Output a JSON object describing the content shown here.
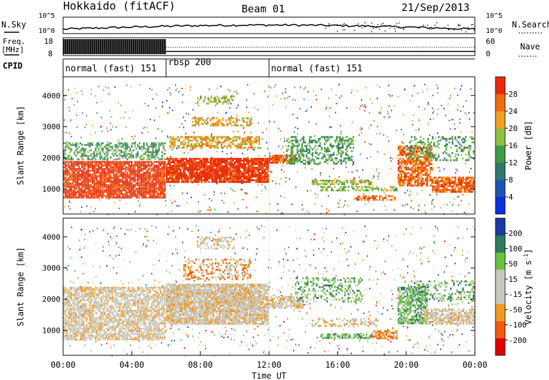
{
  "header": {
    "station": "Hokkaido (fitACF)",
    "beam": "Beam 01",
    "date": "21/Sep/2013"
  },
  "top_panels": {
    "nsky_label": "N.Sky",
    "nsearch_label": "N.Search",
    "freq_label": "Freq.",
    "freq_unit": "[MHz]",
    "nave_label": "Nave",
    "cpid_label": "CPID",
    "noise_ticks": [
      "10^5",
      "10^0"
    ],
    "freq_ticks": [
      "18",
      "8"
    ],
    "nave_ticks": [
      "60",
      "0"
    ]
  },
  "cpid_segments": [
    {
      "label": "normal (fast) 151",
      "start_h": 0,
      "end_h": 6
    },
    {
      "label": "rbsp 200",
      "start_h": 6,
      "end_h": 12
    },
    {
      "label": "normal (fast) 151",
      "start_h": 12,
      "end_h": 24
    }
  ],
  "colors": {
    "power": [
      "#0a2ee0",
      "#1e55b4",
      "#2f7a70",
      "#3f9a4a",
      "#8cc040",
      "#f0a020",
      "#f06a10",
      "#e82a0a"
    ],
    "velocity": [
      "#e00000",
      "#f05a10",
      "#f09a20",
      "#c8c8c0",
      "#c8c8c0",
      "#6cc040",
      "#2f7a60",
      "#1a3aa0"
    ]
  },
  "chart_data": [
    {
      "type": "heatmap",
      "quantity": "power",
      "ylabel": "Slant Range [km]",
      "ylim": [
        200,
        4600
      ],
      "yticks": [
        "4000",
        "3000",
        "2000",
        "1000"
      ],
      "xlim_h": [
        0,
        24
      ],
      "colorbar_label": "Power [dB]",
      "colorbar_ticks": [
        "28",
        "24",
        "20",
        "16",
        "12",
        "8",
        "4"
      ],
      "bands": [
        {
          "start_h": 0.0,
          "end_h": 6.0,
          "range_lo": 700,
          "range_hi": 1900,
          "level": 7,
          "density": 0.9
        },
        {
          "start_h": 0.0,
          "end_h": 6.0,
          "range_lo": 1900,
          "range_hi": 2500,
          "level": 3,
          "density": 0.5
        },
        {
          "start_h": 6.0,
          "end_h": 12.0,
          "range_lo": 1200,
          "range_hi": 2000,
          "level": 7,
          "density": 0.9
        },
        {
          "start_h": 6.2,
          "end_h": 11.5,
          "range_lo": 2300,
          "range_hi": 2700,
          "level": 5,
          "density": 0.6
        },
        {
          "start_h": 7.5,
          "end_h": 11.0,
          "range_lo": 3000,
          "range_hi": 3300,
          "level": 5,
          "density": 0.5
        },
        {
          "start_h": 7.8,
          "end_h": 10.0,
          "range_lo": 3700,
          "range_hi": 4000,
          "level": 4,
          "density": 0.4
        },
        {
          "start_h": 12.0,
          "end_h": 13.6,
          "range_lo": 1800,
          "range_hi": 2100,
          "level": 6,
          "density": 0.8
        },
        {
          "start_h": 13.0,
          "end_h": 17.0,
          "range_lo": 1800,
          "range_hi": 2700,
          "level": 3,
          "density": 0.4
        },
        {
          "start_h": 14.5,
          "end_h": 18.0,
          "range_lo": 1100,
          "range_hi": 1300,
          "level": 4,
          "density": 0.6
        },
        {
          "start_h": 15.0,
          "end_h": 19.5,
          "range_lo": 900,
          "range_hi": 1100,
          "level": 4,
          "density": 0.5
        },
        {
          "start_h": 17.0,
          "end_h": 19.5,
          "range_lo": 600,
          "range_hi": 800,
          "level": 6,
          "density": 0.6
        },
        {
          "start_h": 19.5,
          "end_h": 21.5,
          "range_lo": 1100,
          "range_hi": 2400,
          "level": 6,
          "density": 0.7
        },
        {
          "start_h": 21.5,
          "end_h": 24.0,
          "range_lo": 900,
          "range_hi": 1400,
          "level": 6,
          "density": 0.8
        },
        {
          "start_h": 20.0,
          "end_h": 24.0,
          "range_lo": 1900,
          "range_hi": 2700,
          "level": 3,
          "density": 0.3
        }
      ]
    },
    {
      "type": "heatmap",
      "quantity": "velocity",
      "ylabel": "Slant Range [km]",
      "ylim": [
        200,
        4600
      ],
      "yticks": [
        "4000",
        "3000",
        "2000",
        "1000"
      ],
      "xlim_h": [
        0,
        24
      ],
      "xticks": [
        "00:00",
        "04:00",
        "08:00",
        "12:00",
        "16:00",
        "20:00",
        "00:00"
      ],
      "xlabel": "Time UT",
      "colorbar_label": "Velocity [m s",
      "colorbar_label_sup": "-1",
      "colorbar_label_end": "]",
      "colorbar_ticks": [
        "200",
        "100",
        "50",
        "15",
        "-15",
        "-50",
        "-100",
        "-200"
      ],
      "bands": [
        {
          "start_h": 0.0,
          "end_h": 6.0,
          "range_lo": 700,
          "range_hi": 2400,
          "level": 3,
          "density": 0.75
        },
        {
          "start_h": 6.0,
          "end_h": 12.0,
          "range_lo": 1200,
          "range_hi": 2500,
          "level": 3,
          "density": 0.9
        },
        {
          "start_h": 7.0,
          "end_h": 11.0,
          "range_lo": 2600,
          "range_hi": 3300,
          "level": 2,
          "density": 0.35
        },
        {
          "start_h": 7.8,
          "end_h": 10.0,
          "range_lo": 3600,
          "range_hi": 4000,
          "level": 3,
          "density": 0.4
        },
        {
          "start_h": 12.0,
          "end_h": 14.0,
          "range_lo": 1700,
          "range_hi": 2100,
          "level": 3,
          "density": 0.7
        },
        {
          "start_h": 13.5,
          "end_h": 17.5,
          "range_lo": 1900,
          "range_hi": 2700,
          "level": 5,
          "density": 0.3
        },
        {
          "start_h": 14.5,
          "end_h": 18.5,
          "range_lo": 1100,
          "range_hi": 1400,
          "level": 3,
          "density": 0.4
        },
        {
          "start_h": 15.0,
          "end_h": 18.0,
          "range_lo": 700,
          "range_hi": 900,
          "level": 5,
          "density": 0.7
        },
        {
          "start_h": 18.0,
          "end_h": 19.5,
          "range_lo": 700,
          "range_hi": 1000,
          "level": 2,
          "density": 0.8
        },
        {
          "start_h": 19.5,
          "end_h": 21.3,
          "range_lo": 1200,
          "range_hi": 2400,
          "level": 5,
          "density": 0.7
        },
        {
          "start_h": 21.0,
          "end_h": 24.0,
          "range_lo": 1200,
          "range_hi": 1700,
          "level": 3,
          "density": 0.7
        },
        {
          "start_h": 20.0,
          "end_h": 24.0,
          "range_lo": 1900,
          "range_hi": 2600,
          "level": 5,
          "density": 0.3
        }
      ]
    }
  ]
}
